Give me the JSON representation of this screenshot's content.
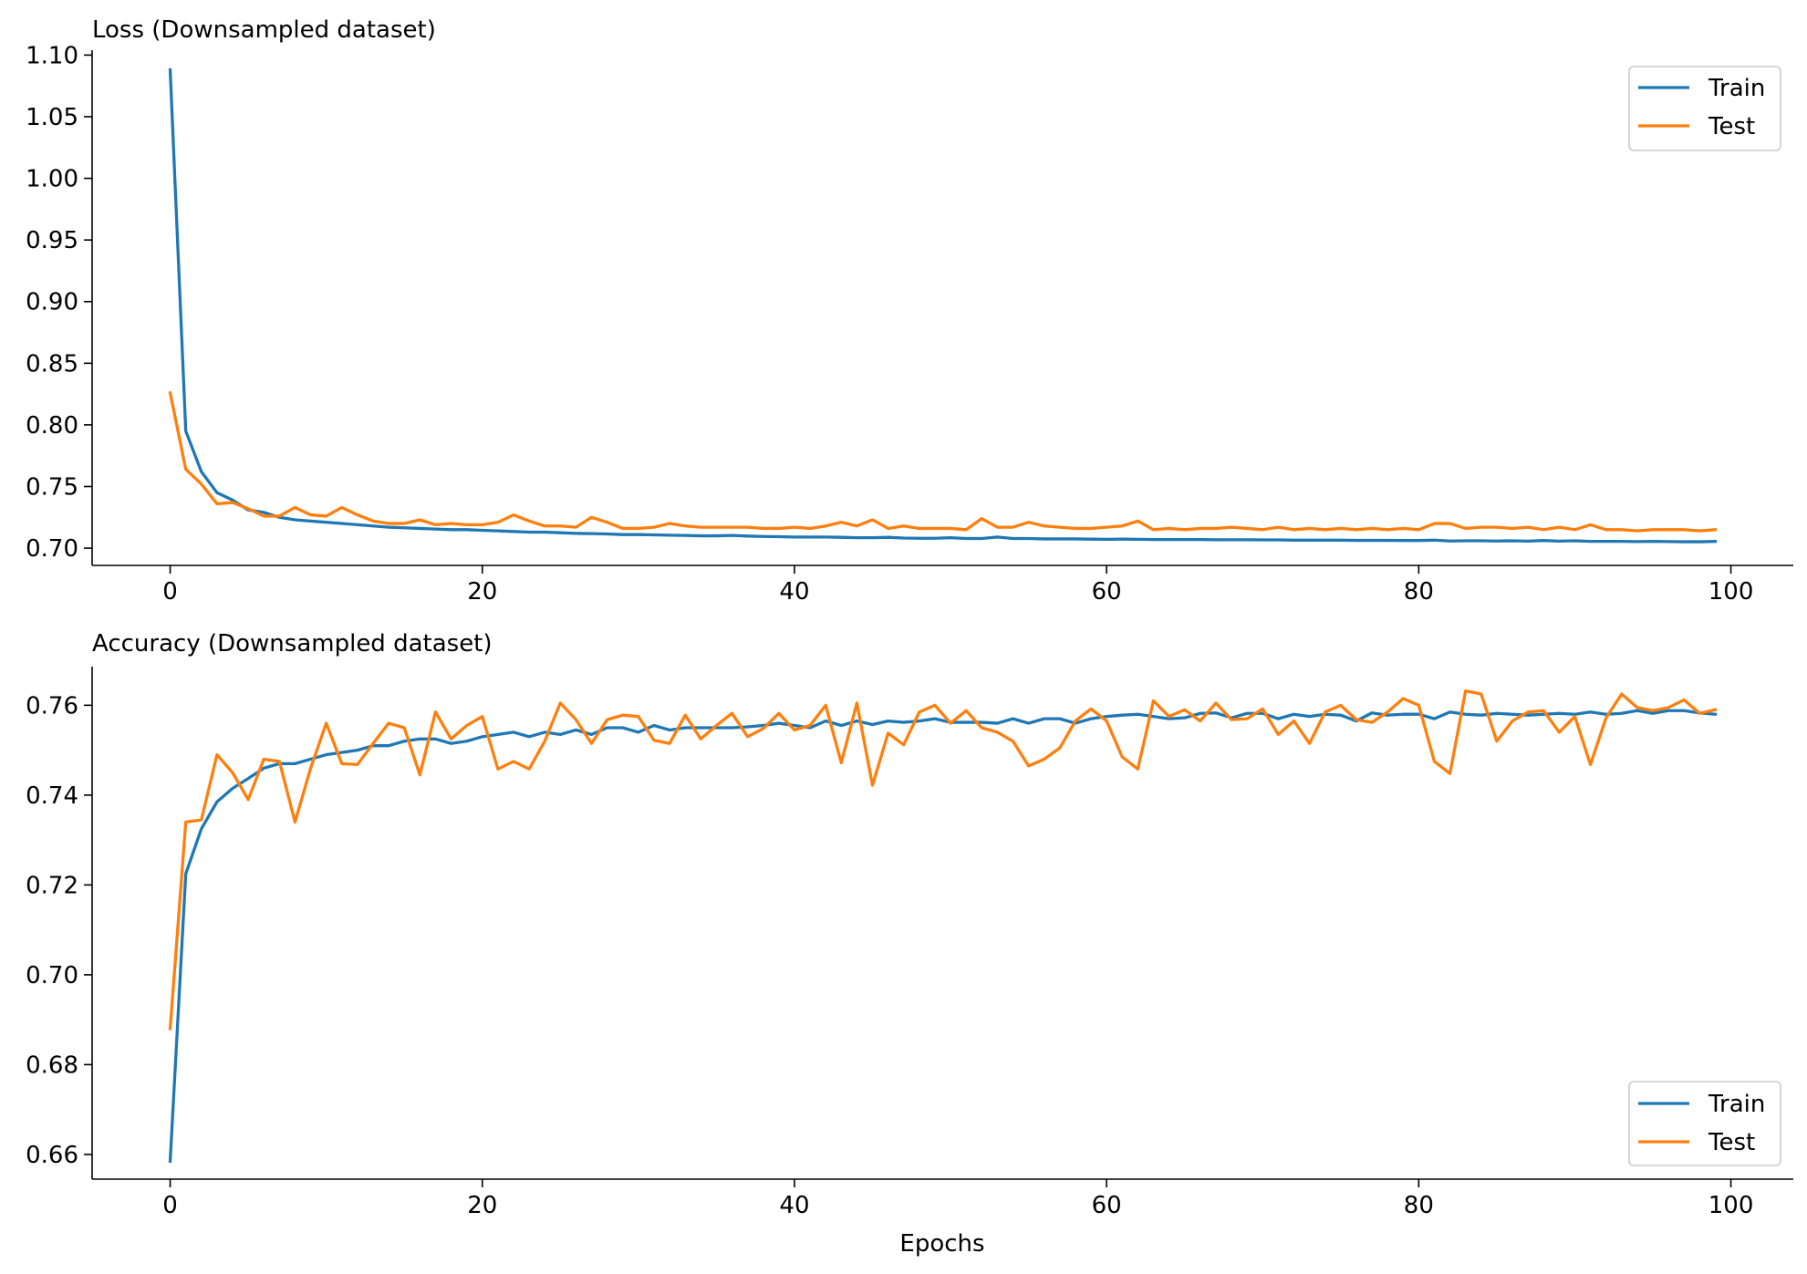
{
  "colors": {
    "train": "#1f77b4",
    "test": "#ff7f0e",
    "axis": "#000000",
    "background": "#ffffff"
  },
  "chart_data": [
    {
      "type": "line",
      "title": "Loss (Downsampled dataset)",
      "xlabel": "",
      "ylabel": "",
      "xlim": [
        -5,
        104
      ],
      "ylim": [
        0.686,
        1.104
      ],
      "xticks": [
        0,
        20,
        40,
        60,
        80,
        100
      ],
      "xtick_labels": [
        "0",
        "20",
        "40",
        "60",
        "80",
        "100"
      ],
      "yticks": [
        0.7,
        0.75,
        0.8,
        0.85,
        0.9,
        0.95,
        1.0,
        1.05,
        1.1
      ],
      "ytick_labels": [
        "0.70",
        "0.75",
        "0.80",
        "0.85",
        "0.90",
        "0.95",
        "1.00",
        "1.05",
        "1.10"
      ],
      "legend_position": "top-right",
      "grid": false,
      "series": [
        {
          "name": "Train",
          "color": "#1f77b4",
          "values": [
            1.088,
            0.795,
            0.762,
            0.745,
            0.739,
            0.731,
            0.729,
            0.725,
            0.723,
            0.722,
            0.721,
            0.72,
            0.719,
            0.718,
            0.717,
            0.7165,
            0.716,
            0.7155,
            0.715,
            0.715,
            0.7145,
            0.714,
            0.7135,
            0.713,
            0.713,
            0.7125,
            0.712,
            0.7118,
            0.7115,
            0.711,
            0.711,
            0.7108,
            0.7105,
            0.7103,
            0.71,
            0.71,
            0.7103,
            0.7098,
            0.7095,
            0.7093,
            0.709,
            0.709,
            0.709,
            0.7088,
            0.7085,
            0.7085,
            0.7088,
            0.7082,
            0.708,
            0.708,
            0.7085,
            0.7078,
            0.7078,
            0.709,
            0.7078,
            0.7078,
            0.7075,
            0.7075,
            0.7075,
            0.7073,
            0.7072,
            0.7073,
            0.7072,
            0.707,
            0.707,
            0.707,
            0.707,
            0.7068,
            0.7068,
            0.7068,
            0.7067,
            0.7067,
            0.7065,
            0.7065,
            0.7065,
            0.7065,
            0.7063,
            0.7063,
            0.7063,
            0.7062,
            0.7062,
            0.7065,
            0.7058,
            0.706,
            0.706,
            0.7058,
            0.706,
            0.7057,
            0.7062,
            0.7057,
            0.706,
            0.7055,
            0.7055,
            0.7055,
            0.7053,
            0.7055,
            0.7053,
            0.7052,
            0.7052,
            0.7055
          ]
        },
        {
          "name": "Test",
          "color": "#ff7f0e",
          "values": [
            0.826,
            0.764,
            0.752,
            0.736,
            0.737,
            0.732,
            0.726,
            0.726,
            0.733,
            0.727,
            0.726,
            0.733,
            0.727,
            0.722,
            0.72,
            0.72,
            0.723,
            0.719,
            0.72,
            0.719,
            0.719,
            0.721,
            0.727,
            0.722,
            0.718,
            0.718,
            0.717,
            0.725,
            0.721,
            0.716,
            0.716,
            0.717,
            0.72,
            0.718,
            0.717,
            0.717,
            0.717,
            0.717,
            0.716,
            0.716,
            0.717,
            0.716,
            0.718,
            0.721,
            0.718,
            0.723,
            0.716,
            0.718,
            0.716,
            0.716,
            0.716,
            0.715,
            0.724,
            0.717,
            0.717,
            0.721,
            0.718,
            0.717,
            0.716,
            0.716,
            0.717,
            0.718,
            0.722,
            0.715,
            0.716,
            0.715,
            0.716,
            0.716,
            0.717,
            0.716,
            0.715,
            0.717,
            0.715,
            0.716,
            0.715,
            0.716,
            0.715,
            0.716,
            0.715,
            0.716,
            0.715,
            0.72,
            0.72,
            0.716,
            0.717,
            0.717,
            0.716,
            0.717,
            0.715,
            0.717,
            0.715,
            0.719,
            0.715,
            0.715,
            0.714,
            0.715,
            0.715,
            0.715,
            0.714,
            0.715
          ]
        }
      ]
    },
    {
      "type": "line",
      "title": "Accuracy (Downsampled dataset)",
      "xlabel": "Epochs",
      "ylabel": "",
      "xlim": [
        -5,
        104
      ],
      "ylim": [
        0.6545,
        0.7686
      ],
      "xticks": [
        0,
        20,
        40,
        60,
        80,
        100
      ],
      "xtick_labels": [
        "0",
        "20",
        "40",
        "60",
        "80",
        "100"
      ],
      "yticks": [
        0.66,
        0.68,
        0.7,
        0.72,
        0.74,
        0.76
      ],
      "ytick_labels": [
        "0.66",
        "0.68",
        "0.70",
        "0.72",
        "0.74",
        "0.76"
      ],
      "legend_position": "bottom-right",
      "grid": false,
      "series": [
        {
          "name": "Train",
          "color": "#1f77b4",
          "values": [
            0.6585,
            0.7225,
            0.7325,
            0.7385,
            0.7415,
            0.7437,
            0.746,
            0.747,
            0.747,
            0.748,
            0.749,
            0.7495,
            0.75,
            0.751,
            0.751,
            0.752,
            0.7525,
            0.7525,
            0.7515,
            0.752,
            0.753,
            0.7535,
            0.754,
            0.753,
            0.754,
            0.7535,
            0.7545,
            0.7535,
            0.755,
            0.755,
            0.754,
            0.7555,
            0.7545,
            0.755,
            0.755,
            0.755,
            0.755,
            0.7552,
            0.7555,
            0.756,
            0.7555,
            0.755,
            0.7565,
            0.7555,
            0.7565,
            0.7557,
            0.7565,
            0.7562,
            0.7565,
            0.757,
            0.7562,
            0.7562,
            0.7562,
            0.756,
            0.757,
            0.756,
            0.757,
            0.757,
            0.756,
            0.757,
            0.7575,
            0.7578,
            0.758,
            0.7575,
            0.757,
            0.7572,
            0.7582,
            0.7583,
            0.7572,
            0.7582,
            0.7582,
            0.757,
            0.758,
            0.7575,
            0.758,
            0.7578,
            0.7565,
            0.7583,
            0.7578,
            0.758,
            0.758,
            0.757,
            0.7585,
            0.758,
            0.7578,
            0.7582,
            0.758,
            0.7578,
            0.758,
            0.7582,
            0.758,
            0.7585,
            0.758,
            0.7582,
            0.7588,
            0.7582,
            0.7588,
            0.7588,
            0.7583,
            0.758
          ]
        },
        {
          "name": "Test",
          "color": "#ff7f0e",
          "values": [
            0.688,
            0.734,
            0.7345,
            0.749,
            0.745,
            0.739,
            0.748,
            0.7475,
            0.734,
            0.746,
            0.756,
            0.747,
            0.7468,
            0.7515,
            0.756,
            0.755,
            0.7445,
            0.7585,
            0.7525,
            0.7555,
            0.7575,
            0.7458,
            0.7475,
            0.7458,
            0.752,
            0.7605,
            0.7568,
            0.7515,
            0.7568,
            0.7578,
            0.7575,
            0.7522,
            0.7515,
            0.7578,
            0.7525,
            0.7555,
            0.7582,
            0.753,
            0.7548,
            0.7582,
            0.7545,
            0.7555,
            0.76,
            0.7472,
            0.7605,
            0.7422,
            0.7538,
            0.7512,
            0.7585,
            0.76,
            0.756,
            0.7588,
            0.755,
            0.754,
            0.752,
            0.7465,
            0.748,
            0.7505,
            0.7565,
            0.7592,
            0.7565,
            0.7485,
            0.7458,
            0.761,
            0.7575,
            0.759,
            0.7565,
            0.7605,
            0.7568,
            0.757,
            0.7592,
            0.7535,
            0.7565,
            0.7515,
            0.7585,
            0.76,
            0.7568,
            0.7562,
            0.7585,
            0.7615,
            0.76,
            0.7475,
            0.7448,
            0.7632,
            0.7625,
            0.752,
            0.7565,
            0.7585,
            0.7588,
            0.754,
            0.7575,
            0.7468,
            0.7572,
            0.7625,
            0.7595,
            0.7588,
            0.7595,
            0.7612,
            0.7582,
            0.759
          ]
        }
      ]
    }
  ]
}
